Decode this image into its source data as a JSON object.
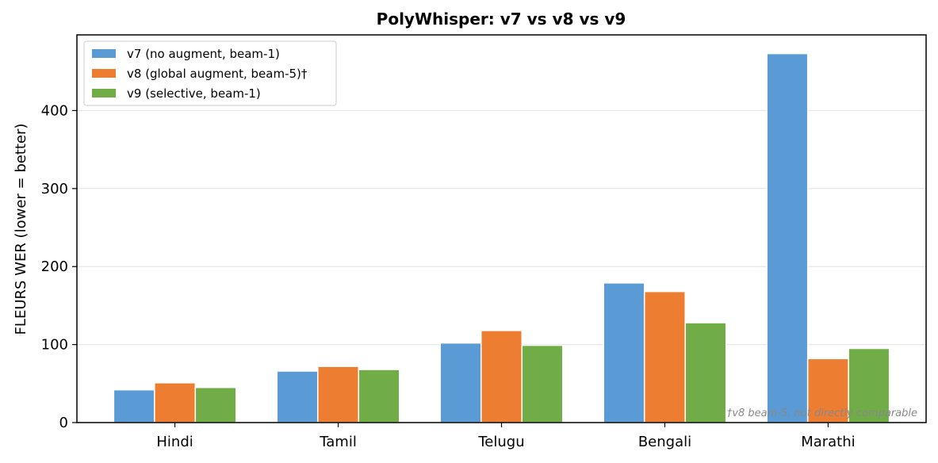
{
  "chart_data": {
    "type": "bar",
    "title": "PolyWhisper: v7 vs v8 vs v9",
    "xlabel": "",
    "ylabel": "FLEURS WER (lower = better)",
    "categories": [
      "Hindi",
      "Tamil",
      "Telugu",
      "Bengali",
      "Marathi"
    ],
    "series": [
      {
        "name": "v7 (no augment, beam-1)",
        "color": "#5b9bd5",
        "values": [
          42,
          66,
          102,
          179,
          473
        ]
      },
      {
        "name": "v8 (global augment, beam-5)†",
        "color": "#ed7d31",
        "values": [
          51,
          72,
          118,
          168,
          82
        ]
      },
      {
        "name": "v9 (selective, beam-1)",
        "color": "#70ad47",
        "values": [
          45,
          68,
          99,
          128,
          95
        ]
      }
    ],
    "ylim": [
      0,
      497
    ],
    "yticks": [
      0,
      100,
      200,
      300,
      400
    ],
    "grid": "horizontal",
    "legend_position": "top-left",
    "footnote": "†v8 beam-5, not directly comparable"
  }
}
